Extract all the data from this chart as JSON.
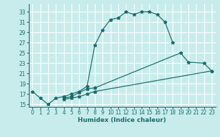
{
  "title": "",
  "xlabel": "Humidex (Indice chaleur)",
  "bg_color": "#c8ecec",
  "line_color": "#1a6b6b",
  "grid_color": "#ffffff",
  "xlim": [
    -0.5,
    23.5
  ],
  "ylim": [
    14.5,
    34.5
  ],
  "xticks": [
    0,
    1,
    2,
    3,
    4,
    5,
    6,
    7,
    8,
    9,
    10,
    11,
    12,
    13,
    14,
    15,
    16,
    17,
    18,
    19,
    20,
    21,
    22,
    23
  ],
  "yticks": [
    15,
    17,
    19,
    21,
    23,
    25,
    27,
    29,
    31,
    33
  ],
  "s1_x": [
    0,
    1,
    2,
    3,
    4,
    5,
    6,
    7,
    8,
    9,
    10,
    11,
    12,
    13,
    14,
    15,
    16,
    17,
    18
  ],
  "s1_y": [
    17.5,
    16.2,
    15.0,
    16.2,
    16.5,
    17.0,
    17.5,
    18.5,
    26.5,
    29.5,
    31.5,
    31.8,
    33.0,
    32.5,
    33.0,
    33.0,
    32.5,
    31.0,
    27.0
  ],
  "s2_x": [
    4,
    5,
    6,
    7,
    8,
    19,
    20,
    22,
    23
  ],
  "s2_y": [
    16.2,
    16.5,
    17.3,
    18.0,
    18.2,
    25.0,
    23.2,
    23.0,
    21.5
  ],
  "s2_break": 5,
  "s3_x": [
    4,
    5,
    6,
    7,
    8,
    23
  ],
  "s3_y": [
    16.0,
    16.2,
    16.5,
    17.0,
    17.5,
    21.5
  ],
  "s3_break": 5,
  "marker": "*",
  "markersize": 3.5,
  "linewidth": 0.9,
  "xlabel_fontsize": 6.5,
  "tick_fontsize": 5.5
}
